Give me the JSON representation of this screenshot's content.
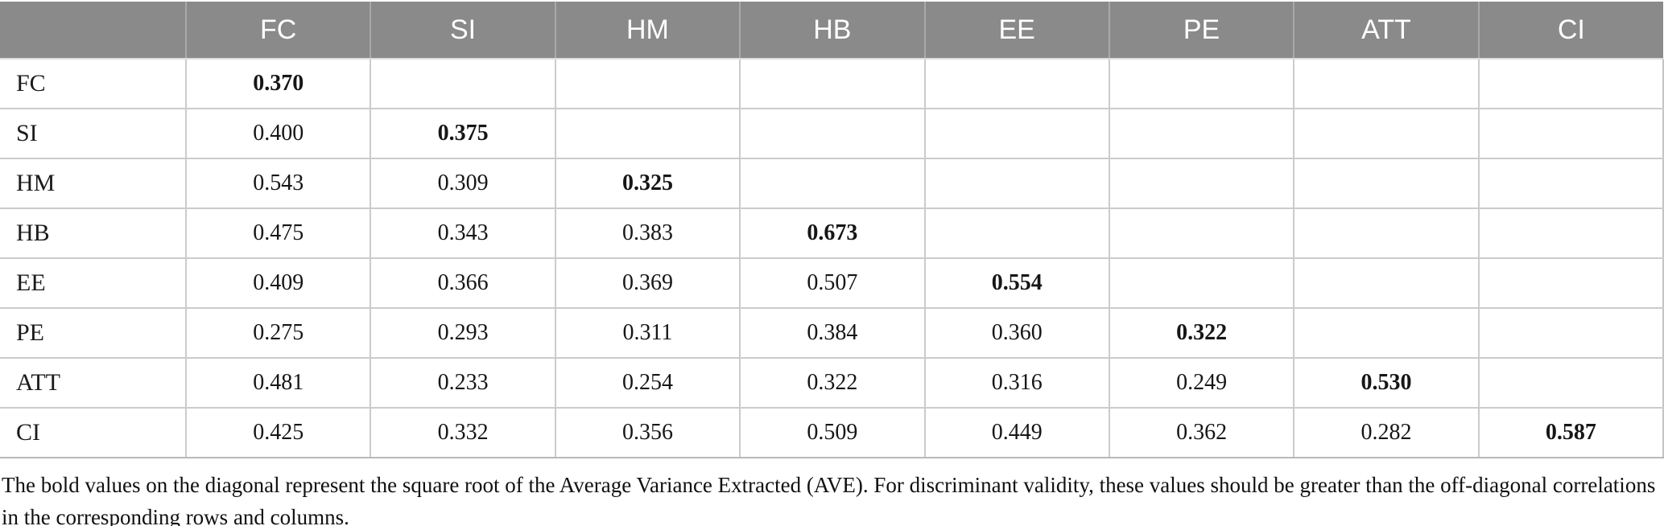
{
  "table": {
    "columns": [
      "",
      "FC",
      "SI",
      "HM",
      "HB",
      "EE",
      "PE",
      "ATT",
      "CI"
    ],
    "rows": [
      {
        "label": "FC",
        "cells": [
          "0.370",
          "",
          "",
          "",
          "",
          "",
          "",
          ""
        ]
      },
      {
        "label": "SI",
        "cells": [
          "0.400",
          "0.375",
          "",
          "",
          "",
          "",
          "",
          ""
        ]
      },
      {
        "label": "HM",
        "cells": [
          "0.543",
          "0.309",
          "0.325",
          "",
          "",
          "",
          "",
          ""
        ]
      },
      {
        "label": "HB",
        "cells": [
          "0.475",
          "0.343",
          "0.383",
          "0.673",
          "",
          "",
          "",
          ""
        ]
      },
      {
        "label": "EE",
        "cells": [
          "0.409",
          "0.366",
          "0.369",
          "0.507",
          "0.554",
          "",
          "",
          ""
        ]
      },
      {
        "label": "PE",
        "cells": [
          "0.275",
          "0.293",
          "0.311",
          "0.384",
          "0.360",
          "0.322",
          "",
          ""
        ]
      },
      {
        "label": "ATT",
        "cells": [
          "0.481",
          "0.233",
          "0.254",
          "0.322",
          "0.316",
          "0.249",
          "0.530",
          ""
        ]
      },
      {
        "label": "CI",
        "cells": [
          "0.425",
          "0.332",
          "0.356",
          "0.509",
          "0.449",
          "0.362",
          "0.282",
          "0.587"
        ]
      }
    ]
  },
  "note": "The bold values on the diagonal represent the square root of the Average Variance Extracted (AVE). For discriminant validity, these values should be greater than the off-diagonal correlations in the corresponding rows and columns.",
  "colors": {
    "header_bg": "#8a8a8a",
    "header_text": "#ffffff",
    "body_text": "#1a1a1a",
    "grid_line": "#cbcbcb"
  }
}
